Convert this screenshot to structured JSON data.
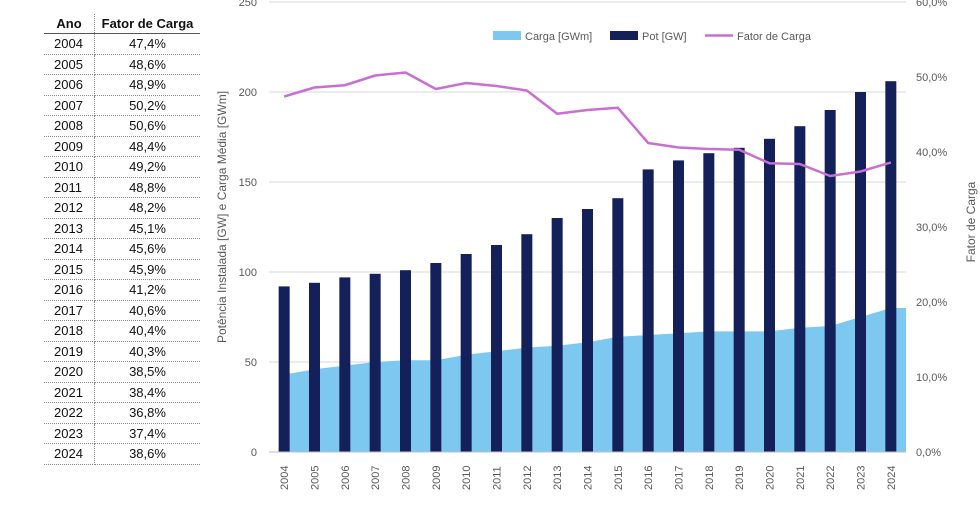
{
  "table": {
    "headers": [
      "Ano",
      "Fator de Carga"
    ],
    "rows": [
      [
        "2004",
        "47,4%"
      ],
      [
        "2005",
        "48,6%"
      ],
      [
        "2006",
        "48,9%"
      ],
      [
        "2007",
        "50,2%"
      ],
      [
        "2008",
        "50,6%"
      ],
      [
        "2009",
        "48,4%"
      ],
      [
        "2010",
        "49,2%"
      ],
      [
        "2011",
        "48,8%"
      ],
      [
        "2012",
        "48,2%"
      ],
      [
        "2013",
        "45,1%"
      ],
      [
        "2014",
        "45,6%"
      ],
      [
        "2015",
        "45,9%"
      ],
      [
        "2016",
        "41,2%"
      ],
      [
        "2017",
        "40,6%"
      ],
      [
        "2018",
        "40,4%"
      ],
      [
        "2019",
        "40,3%"
      ],
      [
        "2020",
        "38,5%"
      ],
      [
        "2021",
        "38,4%"
      ],
      [
        "2022",
        "36,8%"
      ],
      [
        "2023",
        "37,4%"
      ],
      [
        "2024",
        "38,6%"
      ]
    ]
  },
  "colors": {
    "carga": "#7cc8f0",
    "pot": "#14205a",
    "fator": "#c96fd4",
    "grid": "#d9d9d9",
    "axis_text": "#595959"
  },
  "chart_data": {
    "type": "bar",
    "categories": [
      "2004",
      "2005",
      "2006",
      "2007",
      "2008",
      "2009",
      "2010",
      "2011",
      "2012",
      "2013",
      "2014",
      "2015",
      "2016",
      "2017",
      "2018",
      "2019",
      "2020",
      "2021",
      "2022",
      "2023",
      "2024"
    ],
    "series": [
      {
        "name": "Carga [GWm]",
        "type": "area",
        "axis": "left",
        "values": [
          43,
          46,
          48,
          50,
          51,
          51,
          54,
          56,
          58,
          59,
          61,
          64,
          65,
          66,
          67,
          67,
          67,
          69,
          70,
          75,
          80
        ]
      },
      {
        "name": "Pot [GW]",
        "type": "bar",
        "axis": "left",
        "values": [
          92,
          94,
          97,
          99,
          101,
          105,
          110,
          115,
          121,
          130,
          135,
          141,
          157,
          162,
          166,
          169,
          174,
          181,
          190,
          200,
          206
        ]
      },
      {
        "name": "Fator de Carga",
        "type": "line",
        "axis": "right",
        "values": [
          47.4,
          48.6,
          48.9,
          50.2,
          50.6,
          48.4,
          49.2,
          48.8,
          48.2,
          45.1,
          45.6,
          45.9,
          41.2,
          40.6,
          40.4,
          40.3,
          38.5,
          38.4,
          36.8,
          37.4,
          38.6
        ]
      }
    ],
    "ylabel": "Potência Instalada [GW] e Carga Média [GWm]",
    "y2label": "Fator de Carga",
    "ylim": [
      0,
      250
    ],
    "y2lim": [
      0,
      60
    ],
    "yticks": [
      "0",
      "50",
      "100",
      "150",
      "200",
      "250"
    ],
    "y2ticks": [
      "0,0%",
      "10,0%",
      "20,0%",
      "30,0%",
      "40,0%",
      "50,0%",
      "60,0%"
    ],
    "grid": true,
    "legend": "top"
  }
}
